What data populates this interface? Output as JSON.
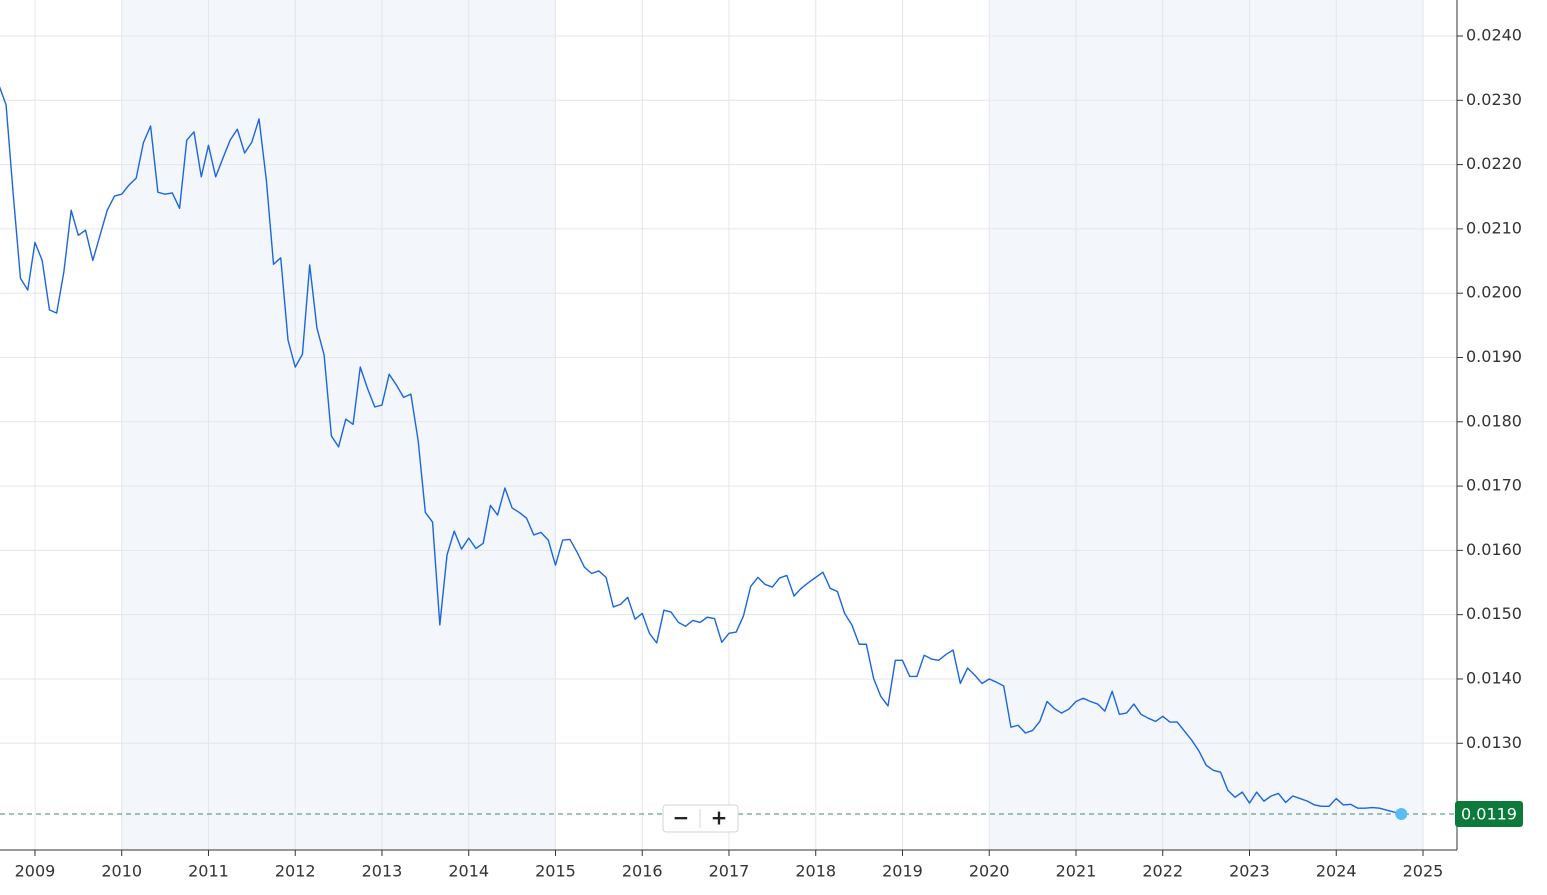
{
  "chart_data": {
    "type": "line",
    "color": "#1a66e0",
    "x": [
      2008.583,
      2008.667,
      2008.75,
      2008.833,
      2008.917,
      2009,
      2009.083,
      2009.167,
      2009.25,
      2009.333,
      2009.417,
      2009.5,
      2009.583,
      2009.667,
      2009.75,
      2009.833,
      2009.917,
      2010,
      2010.083,
      2010.167,
      2010.25,
      2010.333,
      2010.417,
      2010.5,
      2010.583,
      2010.667,
      2010.75,
      2010.833,
      2010.917,
      2011,
      2011.083,
      2011.167,
      2011.25,
      2011.333,
      2011.417,
      2011.5,
      2011.583,
      2011.667,
      2011.75,
      2011.833,
      2011.917,
      2012,
      2012.083,
      2012.167,
      2012.25,
      2012.333,
      2012.417,
      2012.5,
      2012.583,
      2012.667,
      2012.75,
      2012.833,
      2012.917,
      2013,
      2013.083,
      2013.167,
      2013.25,
      2013.333,
      2013.417,
      2013.5,
      2013.583,
      2013.667,
      2013.75,
      2013.833,
      2013.917,
      2014,
      2014.083,
      2014.167,
      2014.25,
      2014.333,
      2014.417,
      2014.5,
      2014.583,
      2014.667,
      2014.75,
      2014.833,
      2014.917,
      2015,
      2015.083,
      2015.167,
      2015.25,
      2015.333,
      2015.417,
      2015.5,
      2015.583,
      2015.667,
      2015.75,
      2015.833,
      2015.917,
      2016,
      2016.083,
      2016.167,
      2016.25,
      2016.333,
      2016.417,
      2016.5,
      2016.583,
      2016.667,
      2016.75,
      2016.833,
      2016.917,
      2017,
      2017.083,
      2017.167,
      2017.25,
      2017.333,
      2017.417,
      2017.5,
      2017.583,
      2017.667,
      2017.75,
      2017.833,
      2017.917,
      2018,
      2018.083,
      2018.167,
      2018.25,
      2018.333,
      2018.417,
      2018.5,
      2018.583,
      2018.667,
      2018.75,
      2018.833,
      2018.917,
      2019,
      2019.083,
      2019.167,
      2019.25,
      2019.333,
      2019.417,
      2019.5,
      2019.583,
      2019.667,
      2019.75,
      2019.833,
      2019.917,
      2020,
      2020.083,
      2020.167,
      2020.25,
      2020.333,
      2020.417,
      2020.5,
      2020.583,
      2020.667,
      2020.75,
      2020.833,
      2020.917,
      2021,
      2021.083,
      2021.167,
      2021.25,
      2021.333,
      2021.417,
      2021.5,
      2021.583,
      2021.667,
      2021.75,
      2021.833,
      2021.917,
      2022,
      2022.083,
      2022.167,
      2022.25,
      2022.333,
      2022.417,
      2022.5,
      2022.583,
      2022.667,
      2022.75,
      2022.833,
      2022.917,
      2023,
      2023.083,
      2023.167,
      2023.25,
      2023.333,
      2023.417,
      2023.5,
      2023.583,
      2023.667,
      2023.75,
      2023.833,
      2023.917,
      2024,
      2024.083,
      2024.167,
      2024.25,
      2024.333,
      2024.417,
      2024.5,
      2024.583,
      2024.667,
      2024.75
    ],
    "values": [
      0.02324,
      0.02293,
      0.02153,
      0.02023,
      0.02005,
      0.02079,
      0.02051,
      0.01974,
      0.01969,
      0.02033,
      0.02129,
      0.0209,
      0.02098,
      0.02051,
      0.0209,
      0.02129,
      0.02151,
      0.02154,
      0.02168,
      0.02179,
      0.02234,
      0.0226,
      0.02157,
      0.02154,
      0.02156,
      0.02132,
      0.02238,
      0.02251,
      0.02181,
      0.0223,
      0.02181,
      0.0221,
      0.02238,
      0.02255,
      0.02218,
      0.02235,
      0.02271,
      0.02176,
      0.02045,
      0.02055,
      0.01927,
      0.01885,
      0.01905,
      0.02044,
      0.01946,
      0.01904,
      0.01778,
      0.01761,
      0.01804,
      0.01796,
      0.01885,
      0.01852,
      0.01823,
      0.01826,
      0.01874,
      0.01857,
      0.01838,
      0.01843,
      0.01771,
      0.01659,
      0.01644,
      0.01484,
      0.01593,
      0.0163,
      0.01602,
      0.01619,
      0.01603,
      0.01611,
      0.0167,
      0.01655,
      0.01697,
      0.01666,
      0.01659,
      0.0165,
      0.01624,
      0.01628,
      0.01616,
      0.01577,
      0.01616,
      0.01617,
      0.01597,
      0.01574,
      0.01564,
      0.01568,
      0.01558,
      0.01512,
      0.01516,
      0.01527,
      0.01493,
      0.01502,
      0.01471,
      0.01456,
      0.01507,
      0.01504,
      0.01488,
      0.01482,
      0.01491,
      0.01488,
      0.01496,
      0.01494,
      0.01457,
      0.01471,
      0.01473,
      0.01498,
      0.01544,
      0.01558,
      0.01547,
      0.01543,
      0.01557,
      0.01561,
      0.01529,
      0.01541,
      0.0155,
      0.01558,
      0.01566,
      0.01541,
      0.01536,
      0.01502,
      0.01484,
      0.01454,
      0.01454,
      0.01401,
      0.01373,
      0.01358,
      0.01429,
      0.01429,
      0.01404,
      0.01404,
      0.01437,
      0.01431,
      0.01429,
      0.01438,
      0.01445,
      0.01393,
      0.01417,
      0.01406,
      0.01393,
      0.014,
      0.01395,
      0.01389,
      0.01325,
      0.01328,
      0.01316,
      0.0132,
      0.01334,
      0.01365,
      0.01354,
      0.01347,
      0.01353,
      0.01365,
      0.0137,
      0.01365,
      0.01361,
      0.0135,
      0.01381,
      0.01345,
      0.01347,
      0.01361,
      0.01345,
      0.01339,
      0.01334,
      0.01342,
      0.01333,
      0.01333,
      0.01319,
      0.01305,
      0.01288,
      0.01266,
      0.01258,
      0.01255,
      0.01227,
      0.01216,
      0.01224,
      0.01207,
      0.01224,
      0.0121,
      0.01218,
      0.01222,
      0.01208,
      0.01218,
      0.01214,
      0.0121,
      0.01204,
      0.01202,
      0.01202,
      0.01214,
      0.01204,
      0.01205,
      0.01199,
      0.01199,
      0.012,
      0.01199,
      0.01196,
      0.01193,
      0.0119
    ],
    "xlim": [
      2008.597,
      2025.392
    ],
    "xticks": [
      2009,
      2010,
      2011,
      2012,
      2013,
      2014,
      2015,
      2016,
      2017,
      2018,
      2019,
      2020,
      2021,
      2022,
      2023,
      2024,
      2025
    ],
    "ylim": [
      0.01134,
      0.02456
    ],
    "yticks": [
      {
        "value": 0.013,
        "label": "0.0130"
      },
      {
        "value": 0.014,
        "label": "0.0140"
      },
      {
        "value": 0.015,
        "label": "0.0150"
      },
      {
        "value": 0.016,
        "label": "0.0160"
      },
      {
        "value": 0.017,
        "label": "0.0170"
      },
      {
        "value": 0.018,
        "label": "0.0180"
      },
      {
        "value": 0.019,
        "label": "0.0190"
      },
      {
        "value": 0.02,
        "label": "0.0200"
      },
      {
        "value": 0.021,
        "label": "0.0210"
      },
      {
        "value": 0.022,
        "label": "0.0220"
      },
      {
        "value": 0.023,
        "label": "0.0230"
      },
      {
        "value": 0.024,
        "label": "0.0240"
      }
    ],
    "grid": true,
    "shaded_ranges": [
      [
        2010,
        2015
      ],
      [
        2020,
        2025
      ]
    ],
    "last_value": 0.0119,
    "zoom_controls": [
      "−",
      "+"
    ]
  }
}
